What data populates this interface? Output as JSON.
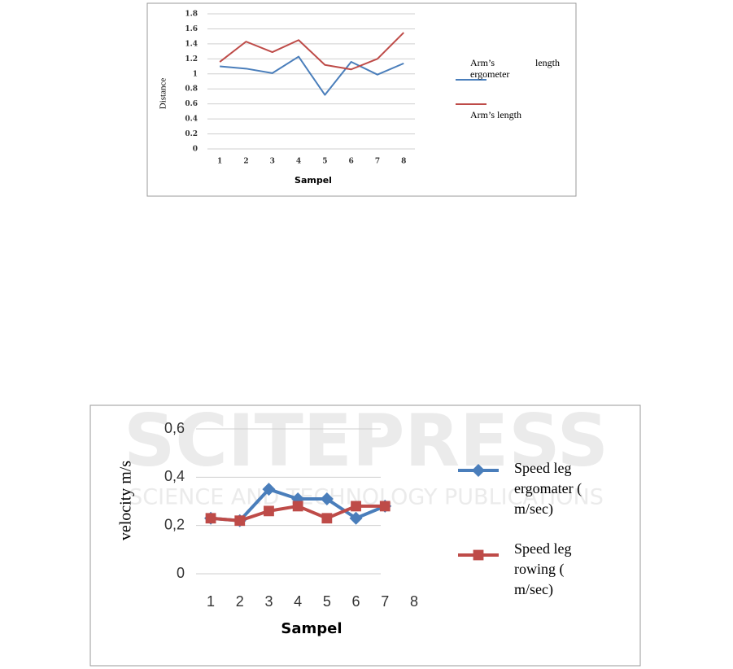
{
  "chart_data": [
    {
      "type": "line",
      "x_label": "Sampel",
      "y_label": "Distance",
      "categories": [
        "1",
        "2",
        "3",
        "4",
        "5",
        "6",
        "7",
        "8"
      ],
      "series": [
        {
          "name": "Arm’s length ergometer",
          "color": "#4a7ebb",
          "values": [
            1.1,
            1.07,
            1.01,
            1.23,
            0.72,
            1.16,
            0.99,
            1.14
          ]
        },
        {
          "name": "Arm’s length",
          "color": "#be4b48",
          "values": [
            1.16,
            1.43,
            1.29,
            1.45,
            1.12,
            1.06,
            1.2,
            1.55
          ]
        }
      ],
      "ylim": [
        0,
        1.8
      ],
      "yticks": [
        0,
        0.2,
        0.4,
        0.6,
        0.8,
        1,
        1.2,
        1.4,
        1.6,
        1.8
      ],
      "grid": true,
      "legend": "right"
    },
    {
      "type": "line",
      "x_label": "Sampel",
      "y_label": "velocity m/s",
      "categories": [
        "1",
        "2",
        "3",
        "4",
        "5",
        "6",
        "7",
        "8"
      ],
      "series": [
        {
          "name": "Speed leg ergomater ( m/sec)",
          "color": "#4a7ebb",
          "marker": "diamond",
          "values": [
            0.23,
            0.22,
            0.35,
            0.31,
            0.31,
            0.23,
            0.28,
            null
          ]
        },
        {
          "name": "Speed leg rowing ( m/sec)",
          "color": "#be4b48",
          "marker": "square",
          "values": [
            0.23,
            0.22,
            0.26,
            0.28,
            0.23,
            0.28,
            0.28,
            null
          ]
        }
      ],
      "ylim": [
        0,
        0.6
      ],
      "yticks": [
        0,
        {
          "value": 0.2,
          "label": "0,2"
        },
        {
          "value": 0.4,
          "label": "0,4"
        },
        {
          "value": 0.6,
          "label": "0,6"
        }
      ],
      "grid": true,
      "legend": "right"
    }
  ],
  "watermark": {
    "title": "SCITEPRESS",
    "subtitle": "SCIENCE AND TECHNOLOGY PUBLICATIONS"
  }
}
